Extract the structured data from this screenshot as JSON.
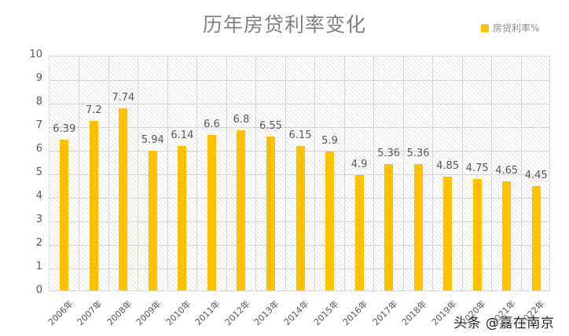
{
  "chart_data": {
    "type": "bar",
    "title": "历年房贷利率变化",
    "xlabel": "",
    "ylabel": "",
    "ylim": [
      0,
      10
    ],
    "yticks": [
      0,
      1,
      2,
      3,
      4,
      5,
      6,
      7,
      8,
      9,
      10
    ],
    "grid": true,
    "legend_position": "top-right",
    "categories": [
      "2006年",
      "2007年",
      "2008年",
      "2009年",
      "2010年",
      "2011年",
      "2012年",
      "2013年",
      "2014年",
      "2015年",
      "2016年",
      "2017年",
      "2018年",
      "2019年",
      "2020年",
      "2021年",
      "2022年"
    ],
    "series": [
      {
        "name": "房贷利率%",
        "color": "#FFC000",
        "values": [
          6.39,
          7.2,
          7.74,
          5.94,
          6.14,
          6.6,
          6.8,
          6.55,
          6.15,
          5.9,
          4.9,
          5.36,
          5.36,
          4.85,
          4.75,
          4.65,
          4.45
        ],
        "data_labels": [
          "6.39",
          "7.2",
          "7.74",
          "5.94",
          "6.14",
          "6.6",
          "6.8",
          "6.55",
          "6.15",
          "5.9",
          "4.9",
          "5.36",
          "5.36",
          "4.85",
          "4.75",
          "4.65",
          "4.45"
        ]
      }
    ]
  },
  "legend": {
    "label": "房贷利率%",
    "color": "#FFC000"
  },
  "watermark": "头条 @嘉在南京"
}
